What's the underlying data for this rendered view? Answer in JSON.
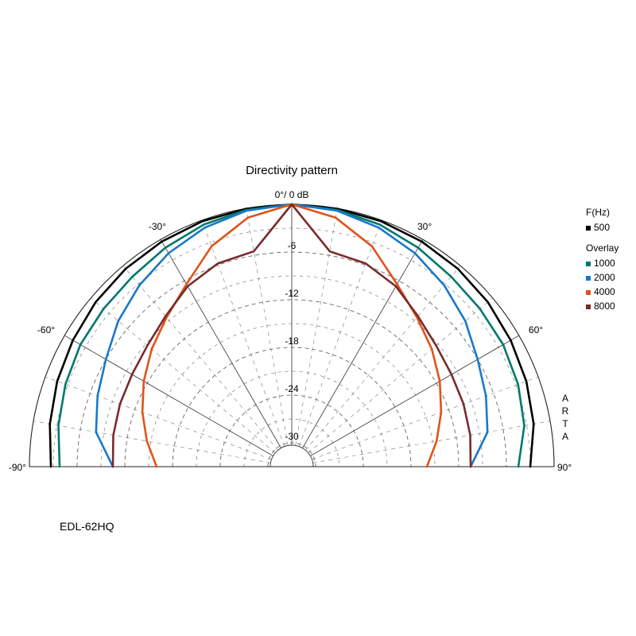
{
  "chart_data": {
    "type": "polar-line",
    "title": "Directivity pattern",
    "model": "EDL-62HQ",
    "watermark": "A R T A",
    "db_ticks": [
      "-6",
      "-12",
      "-18",
      "-24",
      "-30"
    ],
    "db_ticks_values": [
      -6,
      -12,
      -18,
      -24,
      -30
    ],
    "center_label": "0°/ 0 dB",
    "angle_labels": [
      {
        "angle": -30,
        "text": "-30°"
      },
      {
        "angle": 30,
        "text": "30°"
      },
      {
        "angle": -60,
        "text": "-60°"
      },
      {
        "angle": 60,
        "text": "60°"
      },
      {
        "angle": -90,
        "text": "-90°"
      },
      {
        "angle": 90,
        "text": "90°"
      }
    ],
    "r_range_db": [
      -33,
      0
    ],
    "grid": true,
    "legend_header": "F(Hz)",
    "legend_overlay_header": "Overlay",
    "series": [
      {
        "name": "500",
        "color": "#000000",
        "angles": [
          -90,
          -80,
          -70,
          -60,
          -50,
          -40,
          -30,
          -20,
          -10,
          0,
          10,
          20,
          30,
          40,
          50,
          60,
          70,
          80,
          90
        ],
        "db": [
          -2.7,
          -2.1,
          -1.6,
          -1.2,
          -0.8,
          -0.5,
          -0.3,
          -0.15,
          -0.05,
          0,
          -0.05,
          -0.15,
          -0.3,
          -0.5,
          -0.8,
          -1.2,
          -1.6,
          -2.1,
          -3.0
        ]
      },
      {
        "name": "1000",
        "color": "#00786e",
        "angles": [
          -90,
          -80,
          -70,
          -60,
          -50,
          -40,
          -30,
          -20,
          -10,
          0,
          10,
          20,
          30,
          40,
          50,
          60,
          70,
          80,
          90
        ],
        "db": [
          -3.8,
          -3.2,
          -2.7,
          -2.3,
          -2.1,
          -1.8,
          -1.2,
          -0.6,
          -0.2,
          0,
          -0.2,
          -0.6,
          -1.2,
          -1.8,
          -2.1,
          -2.3,
          -2.7,
          -3.3,
          -4.5
        ]
      },
      {
        "name": "2000",
        "color": "#1a78c8",
        "angles": [
          -90,
          -80,
          -70,
          -60,
          -50,
          -40,
          -30,
          -20,
          -10,
          0,
          10,
          20,
          30,
          40,
          50,
          60,
          70,
          80,
          90
        ],
        "db": [
          -10.5,
          -8.0,
          -7.0,
          -6.0,
          -4.5,
          -3.2,
          -2.0,
          -1.0,
          -0.3,
          0,
          -0.3,
          -1.0,
          -2.0,
          -3.2,
          -4.5,
          -6.0,
          -7.0,
          -8.0,
          -10.5
        ]
      },
      {
        "name": "4000",
        "color": "#e0531a",
        "angles": [
          -90,
          -80,
          -70,
          -60,
          -50,
          -40,
          -30,
          -20,
          -10,
          0,
          10,
          20,
          30,
          40,
          50,
          60,
          70,
          80,
          90
        ],
        "db": [
          -16.0,
          -14.5,
          -13.0,
          -11.5,
          -10.0,
          -8.5,
          -6.5,
          -3.5,
          -1.2,
          0,
          -1.2,
          -3.5,
          -6.5,
          -8.5,
          -10.0,
          -11.5,
          -13.0,
          -14.5,
          -16.0
        ]
      },
      {
        "name": "8000",
        "color": "#7a2a2a",
        "angles": [
          -90,
          -80,
          -70,
          -60,
          -50,
          -40,
          -30,
          -20,
          -10,
          0,
          10,
          20,
          30,
          40,
          50,
          60,
          70,
          80,
          90
        ],
        "db": [
          -10.5,
          -10.2,
          -10.0,
          -9.8,
          -9.3,
          -8.3,
          -6.8,
          -5.8,
          -5.5,
          0,
          -5.5,
          -5.8,
          -6.8,
          -8.3,
          -9.3,
          -9.8,
          -10.0,
          -10.2,
          -10.5
        ]
      }
    ]
  }
}
